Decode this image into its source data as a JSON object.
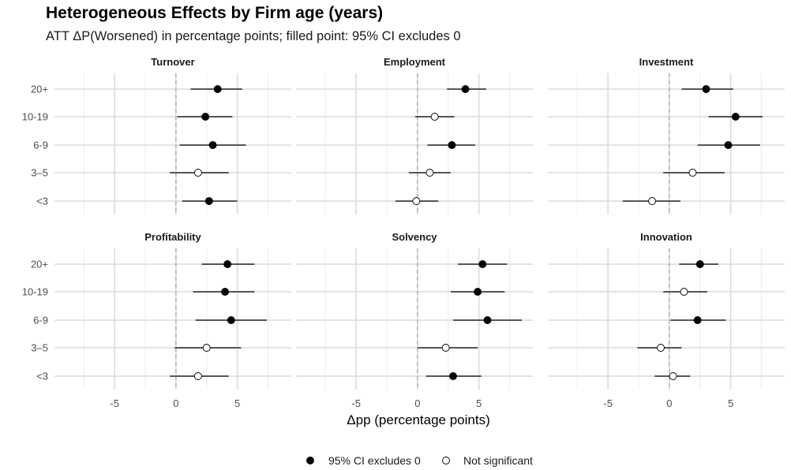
{
  "chart_data": {
    "type": "scatter",
    "title": "Heterogeneous Effects by Firm age (years)",
    "subtitle": "ATT ΔP(Worsened) in percentage points; filled point: 95% CI excludes 0",
    "xlabel": "Δpp (percentage points)",
    "ylabel": "",
    "xlim": [
      -9.9,
      9.4
    ],
    "x_ticks": [
      -5,
      0,
      5
    ],
    "x_tick_labels": [
      "-5",
      "0",
      "5"
    ],
    "reference_line": 0,
    "grid": true,
    "categories": [
      "<3",
      "3–5",
      "6-9",
      "10-19",
      "20+"
    ],
    "legend": {
      "position": "bottom",
      "entries": [
        {
          "label": "95% CI excludes 0",
          "filled": true
        },
        {
          "label": "Not significant",
          "filled": false
        }
      ]
    },
    "panels": [
      {
        "name": "Turnover",
        "points": [
          {
            "category": "<3",
            "estimate": 2.7,
            "ci_low": 0.5,
            "ci_high": 5.0,
            "significant": true
          },
          {
            "category": "3–5",
            "estimate": 1.8,
            "ci_low": -0.5,
            "ci_high": 4.3,
            "significant": false
          },
          {
            "category": "6-9",
            "estimate": 3.0,
            "ci_low": 0.3,
            "ci_high": 5.7,
            "significant": true
          },
          {
            "category": "10-19",
            "estimate": 2.4,
            "ci_low": 0.1,
            "ci_high": 4.6,
            "significant": true
          },
          {
            "category": "20+",
            "estimate": 3.4,
            "ci_low": 1.2,
            "ci_high": 5.4,
            "significant": true
          }
        ]
      },
      {
        "name": "Employment",
        "points": [
          {
            "category": "<3",
            "estimate": -0.1,
            "ci_low": -1.8,
            "ci_high": 1.7,
            "significant": false
          },
          {
            "category": "3–5",
            "estimate": 1.0,
            "ci_low": -0.7,
            "ci_high": 2.7,
            "significant": false
          },
          {
            "category": "6-9",
            "estimate": 2.8,
            "ci_low": 0.8,
            "ci_high": 4.7,
            "significant": true
          },
          {
            "category": "10-19",
            "estimate": 1.4,
            "ci_low": -0.2,
            "ci_high": 3.0,
            "significant": false
          },
          {
            "category": "20+",
            "estimate": 3.9,
            "ci_low": 2.4,
            "ci_high": 5.6,
            "significant": true
          }
        ]
      },
      {
        "name": "Investment",
        "points": [
          {
            "category": "<3",
            "estimate": -1.4,
            "ci_low": -3.8,
            "ci_high": 0.9,
            "significant": false
          },
          {
            "category": "3–5",
            "estimate": 1.9,
            "ci_low": -0.5,
            "ci_high": 4.5,
            "significant": false
          },
          {
            "category": "6-9",
            "estimate": 4.8,
            "ci_low": 2.3,
            "ci_high": 7.4,
            "significant": true
          },
          {
            "category": "10-19",
            "estimate": 5.4,
            "ci_low": 3.2,
            "ci_high": 7.6,
            "significant": true
          },
          {
            "category": "20+",
            "estimate": 3.0,
            "ci_low": 1.0,
            "ci_high": 5.2,
            "significant": true
          }
        ]
      },
      {
        "name": "Profitability",
        "points": [
          {
            "category": "<3",
            "estimate": 1.8,
            "ci_low": -0.5,
            "ci_high": 4.3,
            "significant": false
          },
          {
            "category": "3–5",
            "estimate": 2.5,
            "ci_low": -0.1,
            "ci_high": 5.3,
            "significant": false
          },
          {
            "category": "6-9",
            "estimate": 4.5,
            "ci_low": 1.6,
            "ci_high": 7.4,
            "significant": true
          },
          {
            "category": "10-19",
            "estimate": 4.0,
            "ci_low": 1.4,
            "ci_high": 6.4,
            "significant": true
          },
          {
            "category": "20+",
            "estimate": 4.2,
            "ci_low": 2.1,
            "ci_high": 6.4,
            "significant": true
          }
        ]
      },
      {
        "name": "Solvency",
        "points": [
          {
            "category": "<3",
            "estimate": 2.9,
            "ci_low": 0.7,
            "ci_high": 5.2,
            "significant": true
          },
          {
            "category": "3–5",
            "estimate": 2.3,
            "ci_low": 0.0,
            "ci_high": 4.9,
            "significant": false
          },
          {
            "category": "6-9",
            "estimate": 5.7,
            "ci_low": 2.9,
            "ci_high": 8.5,
            "significant": true
          },
          {
            "category": "10-19",
            "estimate": 4.9,
            "ci_low": 2.7,
            "ci_high": 7.1,
            "significant": true
          },
          {
            "category": "20+",
            "estimate": 5.3,
            "ci_low": 3.3,
            "ci_high": 7.3,
            "significant": true
          }
        ]
      },
      {
        "name": "Innovation",
        "points": [
          {
            "category": "<3",
            "estimate": 0.3,
            "ci_low": -1.2,
            "ci_high": 1.7,
            "significant": false
          },
          {
            "category": "3–5",
            "estimate": -0.7,
            "ci_low": -2.6,
            "ci_high": 1.0,
            "significant": false
          },
          {
            "category": "6-9",
            "estimate": 2.3,
            "ci_low": 0.1,
            "ci_high": 4.6,
            "significant": true
          },
          {
            "category": "10-19",
            "estimate": 1.2,
            "ci_low": -0.5,
            "ci_high": 3.1,
            "significant": false
          },
          {
            "category": "20+",
            "estimate": 2.5,
            "ci_low": 0.8,
            "ci_high": 4.0,
            "significant": true
          }
        ]
      }
    ]
  }
}
